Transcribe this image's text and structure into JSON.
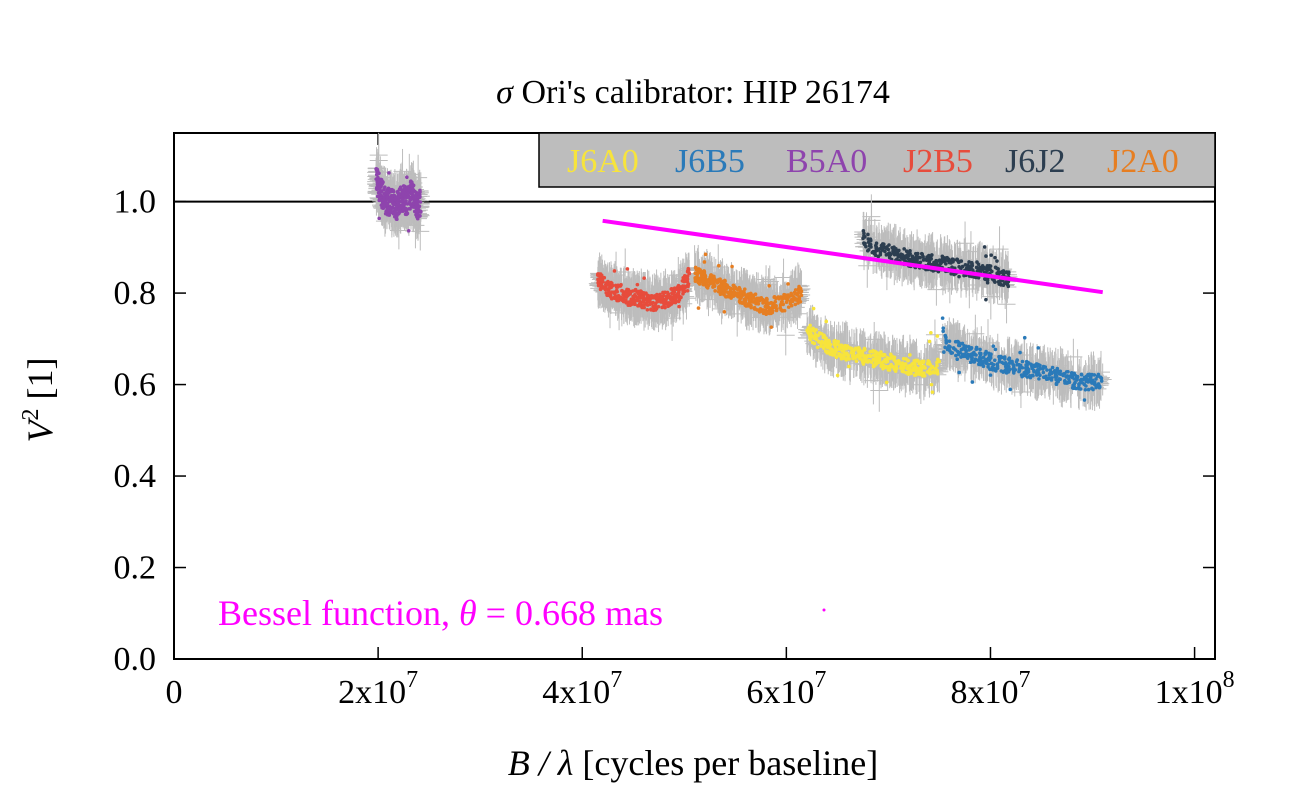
{
  "chart_data": {
    "type": "scatter",
    "title": "σ Ori's calibrator: HIP 26174",
    "title_parts": {
      "sym": "σ",
      "rest": " Ori's calibrator: HIP 26174"
    },
    "xlabel": "B / λ [cycles per baseline]",
    "xlabel_parts": {
      "sym": "B / λ",
      "rest": " [cycles per baseline]"
    },
    "ylabel": "V² [1]",
    "ylabel_parts": {
      "sym": "V",
      "sup": "2",
      "rest": " [1]"
    },
    "xlim": [
      0,
      102000000
    ],
    "ylim": [
      0.0,
      1.15
    ],
    "xticks": [
      {
        "v": 0,
        "base": "0",
        "exp": ""
      },
      {
        "v": 20000000,
        "base": "2x10",
        "exp": "7"
      },
      {
        "v": 40000000,
        "base": "4x10",
        "exp": "7"
      },
      {
        "v": 60000000,
        "base": "6x10",
        "exp": "7"
      },
      {
        "v": 80000000,
        "base": "8x10",
        "exp": "7"
      },
      {
        "v": 100000000,
        "base": "1x10",
        "exp": "8"
      }
    ],
    "yticks": [
      {
        "v": 0.0,
        "label": "0.0"
      },
      {
        "v": 0.2,
        "label": "0.2"
      },
      {
        "v": 0.4,
        "label": "0.4"
      },
      {
        "v": 0.6,
        "label": "0.6"
      },
      {
        "v": 0.8,
        "label": "0.8"
      },
      {
        "v": 1.0,
        "label": "1.0"
      }
    ],
    "reference_line_y": 1.0,
    "grid": false,
    "legend_placement": "top-right",
    "error_bar_color": "#bdbdbd",
    "series": [
      {
        "name": "J6A0",
        "color": "#f7e43c",
        "x": [
          62000000,
          63000000,
          64500000,
          66000000,
          68000000,
          70000000,
          72000000,
          73500000,
          75000000
        ],
        "y": [
          0.72,
          0.7,
          0.68,
          0.67,
          0.66,
          0.65,
          0.64,
          0.635,
          0.64
        ]
      },
      {
        "name": "J6B5",
        "color": "#2a7ab9",
        "x": [
          75300000,
          76500000,
          78000000,
          80000000,
          82000000,
          84000000,
          86000000,
          88000000,
          89500000,
          91000000
        ],
        "y": [
          0.69,
          0.68,
          0.67,
          0.65,
          0.64,
          0.63,
          0.62,
          0.61,
          0.605,
          0.61
        ]
      },
      {
        "name": "B5A0",
        "color": "#8e44ad",
        "x": [
          19800000,
          20300000,
          20800000,
          21300000,
          21800000,
          22300000,
          22800000,
          23300000,
          23800000,
          24200000
        ],
        "y": [
          1.05,
          1.02,
          1.0,
          1.0,
          0.99,
          1.01,
          1.0,
          1.02,
          0.99,
          1.0
        ]
      },
      {
        "name": "J2B5",
        "color": "#e74c3c",
        "x": [
          41500000,
          42500000,
          43500000,
          44500000,
          45500000,
          46500000,
          47500000,
          48500000,
          49500000,
          50500000
        ],
        "y": [
          0.83,
          0.81,
          0.8,
          0.79,
          0.79,
          0.78,
          0.78,
          0.79,
          0.8,
          0.84
        ]
      },
      {
        "name": "J6J2",
        "color": "#2c3e50",
        "x": [
          67500000,
          68500000,
          70000000,
          71500000,
          73000000,
          74500000,
          76000000,
          77500000,
          79000000,
          80500000,
          81800000
        ],
        "y": [
          0.92,
          0.9,
          0.89,
          0.88,
          0.87,
          0.865,
          0.86,
          0.855,
          0.85,
          0.84,
          0.83
        ]
      },
      {
        "name": "J2A0",
        "color": "#e67e22",
        "x": [
          51000000,
          52000000,
          53000000,
          54000000,
          55000000,
          56000000,
          57000000,
          58000000,
          59000000,
          60000000,
          61500000
        ],
        "y": [
          0.84,
          0.83,
          0.82,
          0.81,
          0.8,
          0.79,
          0.78,
          0.77,
          0.775,
          0.78,
          0.8
        ]
      }
    ],
    "model": {
      "name": "Bessel function",
      "color": "#ff00ff",
      "x": [
        42000000,
        91000000
      ],
      "y": [
        0.958,
        0.802
      ],
      "annotation": {
        "prefix": "Bessel function, ",
        "sym": "θ",
        "rest": " = 0.668 mas"
      }
    }
  }
}
